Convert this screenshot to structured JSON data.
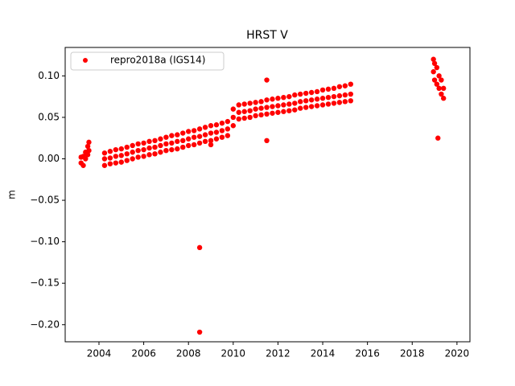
{
  "chart_data": {
    "type": "scatter",
    "title": "HRST V",
    "ylabel": "m",
    "legend": "upper left",
    "xlim": [
      2002.49,
      2020.58
    ],
    "ylim": [
      -0.2206,
      0.1343
    ],
    "xticks": [
      2004,
      2006,
      2008,
      2010,
      2012,
      2014,
      2016,
      2018,
      2020
    ],
    "yticks": [
      {
        "value": -0.2,
        "label": "−0.20"
      },
      {
        "value": -0.15,
        "label": "−0.15"
      },
      {
        "value": -0.1,
        "label": "−0.10"
      },
      {
        "value": -0.05,
        "label": "−0.05"
      },
      {
        "value": 0,
        "label": "0.00"
      },
      {
        "value": 0.05,
        "label": "0.05"
      },
      {
        "value": 0.1,
        "label": "0.10"
      }
    ],
    "series": [
      {
        "name": "repro2018a (IGS14)",
        "color": "#ff0000",
        "x": [
          2003.2,
          2003.2,
          2003.3,
          2003.3,
          2003.4,
          2003.4,
          2003.5,
          2003.5,
          2003.55,
          2003.55,
          2004.25,
          2004.25,
          2004.25,
          2004.5,
          2004.5,
          2004.5,
          2004.75,
          2004.75,
          2004.75,
          2005.0,
          2005.0,
          2005.0,
          2005.25,
          2005.25,
          2005.25,
          2005.5,
          2005.5,
          2005.5,
          2005.75,
          2005.75,
          2005.75,
          2006.0,
          2006.0,
          2006.0,
          2006.25,
          2006.25,
          2006.25,
          2006.5,
          2006.5,
          2006.5,
          2006.75,
          2006.75,
          2006.75,
          2007.0,
          2007.0,
          2007.0,
          2007.25,
          2007.25,
          2007.25,
          2007.5,
          2007.5,
          2007.5,
          2007.75,
          2007.75,
          2007.75,
          2008.0,
          2008.0,
          2008.0,
          2008.25,
          2008.25,
          2008.25,
          2008.5,
          2008.5,
          2008.5,
          2008.75,
          2008.75,
          2008.75,
          2009.0,
          2009.0,
          2009.0,
          2009.25,
          2009.25,
          2009.25,
          2009.5,
          2009.5,
          2009.5,
          2009.75,
          2009.75,
          2009.75,
          2010.0,
          2010.0,
          2010.0,
          2010.25,
          2010.25,
          2010.25,
          2010.5,
          2010.5,
          2010.5,
          2010.75,
          2010.75,
          2010.75,
          2011.0,
          2011.0,
          2011.0,
          2011.25,
          2011.25,
          2011.25,
          2011.5,
          2011.5,
          2011.5,
          2011.75,
          2011.75,
          2011.75,
          2012.0,
          2012.0,
          2012.0,
          2012.25,
          2012.25,
          2012.25,
          2012.5,
          2012.5,
          2012.5,
          2012.75,
          2012.75,
          2012.75,
          2013.0,
          2013.0,
          2013.0,
          2013.25,
          2013.25,
          2013.25,
          2013.5,
          2013.5,
          2013.5,
          2013.75,
          2013.75,
          2013.75,
          2014.0,
          2014.0,
          2014.0,
          2014.25,
          2014.25,
          2014.25,
          2014.5,
          2014.5,
          2014.5,
          2014.75,
          2014.75,
          2014.75,
          2015.0,
          2015.0,
          2015.0,
          2015.25,
          2015.25,
          2015.25,
          2018.95,
          2018.95,
          2019.0,
          2019.0,
          2019.1,
          2019.1,
          2019.2,
          2019.2,
          2019.3,
          2019.3,
          2019.4,
          2019.4,
          2008.5,
          2008.5,
          2011.5,
          2011.5,
          2009.0,
          2019.15
        ],
        "y": [
          -0.005,
          0.002,
          -0.008,
          0.003,
          0.0,
          0.008,
          0.005,
          0.015,
          0.02,
          0.01,
          0.007,
          0.0,
          -0.008,
          0.009,
          0.001,
          -0.006,
          0.011,
          0.003,
          -0.005,
          0.012,
          0.004,
          -0.004,
          0.014,
          0.006,
          -0.002,
          0.016,
          0.008,
          0.0,
          0.018,
          0.01,
          0.002,
          0.019,
          0.011,
          0.003,
          0.021,
          0.013,
          0.005,
          0.022,
          0.014,
          0.006,
          0.024,
          0.016,
          0.008,
          0.026,
          0.018,
          0.01,
          0.028,
          0.019,
          0.011,
          0.029,
          0.021,
          0.012,
          0.031,
          0.022,
          0.014,
          0.033,
          0.024,
          0.016,
          0.034,
          0.026,
          0.017,
          0.036,
          0.027,
          0.019,
          0.038,
          0.029,
          0.021,
          0.04,
          0.031,
          0.022,
          0.041,
          0.032,
          0.024,
          0.043,
          0.034,
          0.026,
          0.045,
          0.036,
          0.028,
          0.06,
          0.05,
          0.04,
          0.065,
          0.056,
          0.048,
          0.066,
          0.057,
          0.049,
          0.067,
          0.058,
          0.05,
          0.068,
          0.06,
          0.052,
          0.069,
          0.061,
          0.053,
          0.071,
          0.062,
          0.054,
          0.072,
          0.063,
          0.055,
          0.073,
          0.064,
          0.056,
          0.074,
          0.065,
          0.057,
          0.075,
          0.066,
          0.058,
          0.077,
          0.067,
          0.059,
          0.078,
          0.069,
          0.061,
          0.079,
          0.07,
          0.062,
          0.08,
          0.071,
          0.063,
          0.081,
          0.072,
          0.064,
          0.083,
          0.073,
          0.065,
          0.084,
          0.074,
          0.066,
          0.085,
          0.075,
          0.067,
          0.087,
          0.076,
          0.068,
          0.088,
          0.077,
          0.069,
          0.09,
          0.078,
          0.07,
          0.12,
          0.105,
          0.115,
          0.095,
          0.11,
          0.09,
          0.1,
          0.085,
          0.095,
          0.078,
          0.085,
          0.073,
          -0.107,
          -0.209,
          0.095,
          0.022,
          0.017,
          0.025
        ]
      }
    ]
  }
}
